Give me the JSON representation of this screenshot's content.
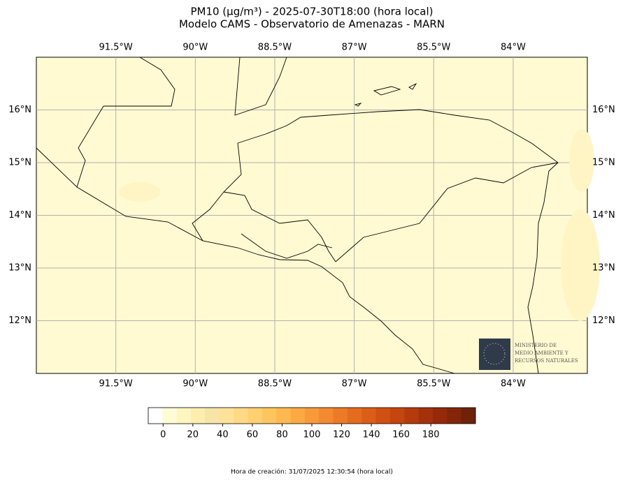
{
  "title": [
    "PM10 (μg/m³) - 2025-07-30T18:00 (hora local)",
    "Modelo CAMS - Observatorio de Amenazas - MARN"
  ],
  "map": {
    "xlim": [
      -93,
      -82.6
    ],
    "ylim": [
      11,
      17
    ],
    "xticks": [
      {
        "value": -91.5,
        "label": "91.5°W"
      },
      {
        "value": -90,
        "label": "90°W"
      },
      {
        "value": -88.5,
        "label": "88.5°W"
      },
      {
        "value": -87,
        "label": "87°W"
      },
      {
        "value": -85.5,
        "label": "85.5°W"
      },
      {
        "value": -84,
        "label": "84°W"
      }
    ],
    "yticks": [
      {
        "value": 12,
        "label": "12°N"
      },
      {
        "value": 13,
        "label": "13°N"
      },
      {
        "value": 14,
        "label": "14°N"
      },
      {
        "value": 15,
        "label": "15°N"
      },
      {
        "value": 16,
        "label": "16°N"
      }
    ],
    "grid": true,
    "background": "#fffad2"
  },
  "colorbar": {
    "lim": [
      -10,
      210
    ],
    "ticks": [
      0,
      20,
      40,
      60,
      80,
      100,
      120,
      140,
      160,
      180
    ],
    "colors": [
      "#ffffff",
      "#fffbd5",
      "#fff5c0",
      "#fdeeb0",
      "#f6e4a8",
      "#ffe29a",
      "#ffd985",
      "#ffd070",
      "#fec55f",
      "#fdb94f",
      "#fba943",
      "#f89a39",
      "#f38a2f",
      "#ed7a26",
      "#e56b1f",
      "#dc5d17",
      "#d05012",
      "#c4450e",
      "#b53b0c",
      "#a5310b",
      "#942a0a",
      "#822509",
      "#6e2208"
    ]
  },
  "logo": {
    "lines": [
      "MINISTERIO DE",
      "MEDIO AMBIENTE Y",
      "RECURSOS NATURALES"
    ]
  },
  "footer": "Hora de creación: 31/07/2025 12:30:54 (hora local)"
}
